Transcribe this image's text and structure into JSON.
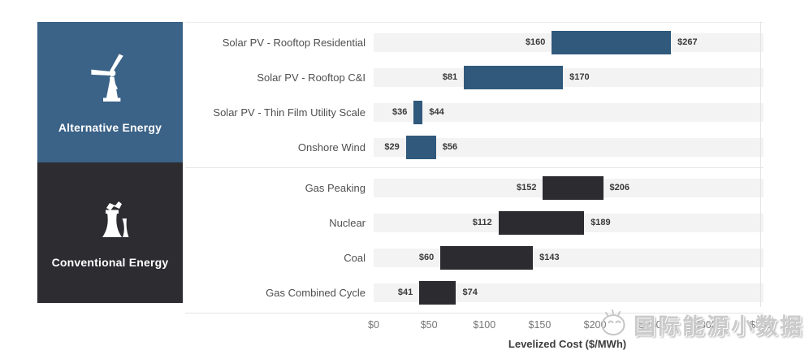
{
  "chart_data": {
    "type": "bar",
    "subtype": "horizontal-range",
    "title": "",
    "xlabel": "Levelized Cost ($/MWh)",
    "xlim": [
      0,
      350
    ],
    "grid": false,
    "xticks": [
      {
        "label": "$0",
        "value": 0
      },
      {
        "label": "$50",
        "value": 50
      },
      {
        "label": "$100",
        "value": 100
      },
      {
        "label": "$150",
        "value": 150
      },
      {
        "label": "$200",
        "value": 200
      },
      {
        "label": "$250",
        "value": 250
      },
      {
        "label": "$300",
        "value": 300
      },
      {
        "label": "$350",
        "value": 350
      }
    ],
    "groups": [
      {
        "name": "Alternative Energy",
        "icon": "wind-turbine-icon",
        "panel_color": "#3b6287",
        "bar_color": "#31597c",
        "series": [
          {
            "label": "Solar PV - Rooftop Residential",
            "min": 160,
            "max": 267,
            "min_label": "$160",
            "max_label": "$267"
          },
          {
            "label": "Solar PV - Rooftop C&I",
            "min": 81,
            "max": 170,
            "min_label": "$81",
            "max_label": "$170"
          },
          {
            "label": "Solar PV - Thin Film Utility Scale",
            "min": 36,
            "max": 44,
            "min_label": "$36",
            "max_label": "$44"
          },
          {
            "label": "Onshore Wind",
            "min": 29,
            "max": 56,
            "min_label": "$29",
            "max_label": "$56"
          }
        ]
      },
      {
        "name": "Conventional Energy",
        "icon": "power-plant-icon",
        "panel_color": "#2c2c31",
        "bar_color": "#2b2b30",
        "series": [
          {
            "label": "Gas Peaking",
            "min": 152,
            "max": 206,
            "min_label": "$152",
            "max_label": "$206"
          },
          {
            "label": "Nuclear",
            "min": 112,
            "max": 189,
            "min_label": "$112",
            "max_label": "$189"
          },
          {
            "label": "Coal",
            "min": 60,
            "max": 143,
            "min_label": "$60",
            "max_label": "$143"
          },
          {
            "label": "Gas Combined Cycle",
            "min": 41,
            "max": 74,
            "min_label": "$41",
            "max_label": "$74"
          }
        ]
      }
    ]
  },
  "watermark": {
    "text": "国际能源小数据"
  }
}
